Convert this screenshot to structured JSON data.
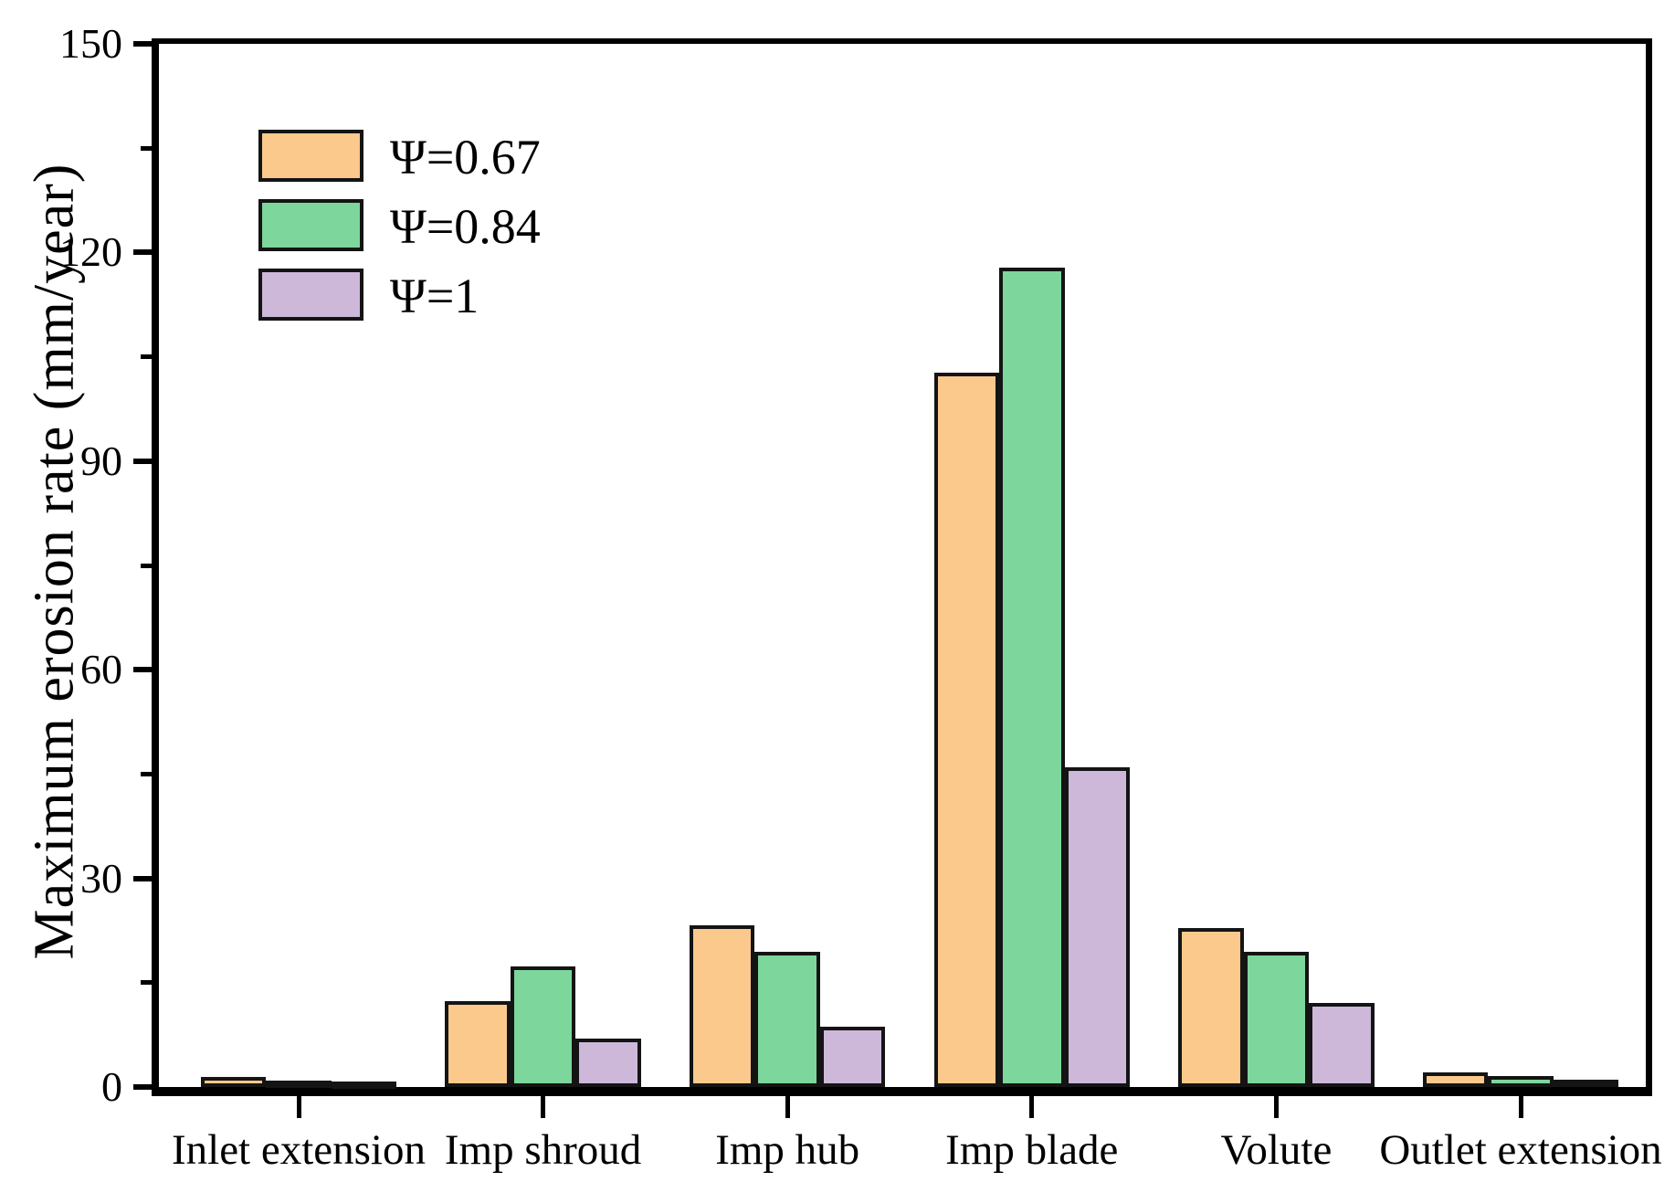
{
  "figure": {
    "background": "#ffffff"
  },
  "chart_data": {
    "type": "bar",
    "title": "",
    "xlabel": "",
    "ylabel": "Maximum erosion rate (mm/year)",
    "ylim": [
      0,
      150
    ],
    "y_major_ticks": [
      0,
      30,
      60,
      90,
      120,
      150
    ],
    "y_minor_ticks": [
      15,
      45,
      75,
      105,
      135
    ],
    "categories": [
      "Inlet extension",
      "Imp shroud",
      "Imp hub",
      "Imp blade",
      "Volute",
      "Outlet extension"
    ],
    "series": [
      {
        "name": "Ψ=0.67",
        "color": "#FBC98C",
        "values": [
          1.4,
          12.3,
          23.2,
          102.7,
          22.9,
          2.1
        ]
      },
      {
        "name": "Ψ=0.84",
        "color": "#7DD69B",
        "values": [
          0.9,
          17.3,
          19.4,
          117.8,
          19.4,
          1.6
        ]
      },
      {
        "name": "Ψ=1",
        "color": "#CDB8DA",
        "values": [
          0.7,
          7.0,
          8.7,
          46.0,
          12.1,
          1.0
        ]
      }
    ],
    "legend_position": "upper-left",
    "grid": false,
    "bar_edge_color": "#141414",
    "axis_color": "#000000"
  }
}
